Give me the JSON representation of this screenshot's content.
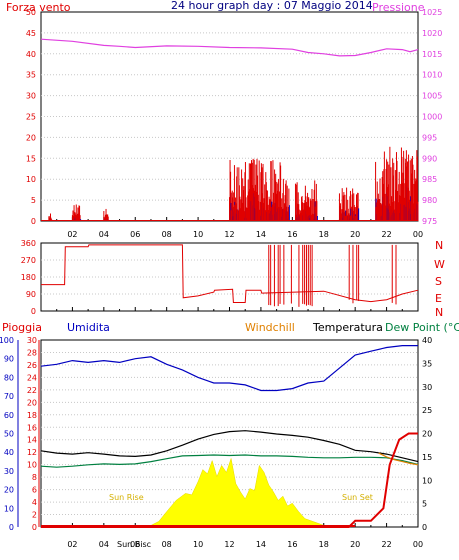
{
  "header": {
    "left_label": "Forza vento",
    "title": "24 hour graph day : 07 Maggio 2014",
    "right_label": "Pressione"
  },
  "labels": {
    "pioggia": "Pioggia",
    "umidita": "Umidita",
    "windchill": "Windchill",
    "temperatura": "Temperatura",
    "dewpoint": "Dew Point (°C",
    "sunrise": "Sun Rise",
    "sunset": "Sun Set",
    "sunbisc": "Sun Bisc"
  },
  "x_ticks": [
    "02",
    "04",
    "06",
    "08",
    "10",
    "12",
    "14",
    "16",
    "18",
    "20",
    "22",
    "00"
  ],
  "dir_labels": [
    "N",
    "W",
    "S",
    "E",
    "N"
  ],
  "colors": {
    "wind": "#e00000",
    "gust": "#0000c0",
    "pressure": "#e040e0",
    "humidity": "#0000c0",
    "temp": "#000000",
    "dew": "#008040",
    "windchill": "#e08000",
    "rain": "#e00000",
    "solar": "#ffff00",
    "grid": "#000000",
    "title": "#000080"
  },
  "chart_data": [
    {
      "type": "line",
      "title": "24 hour graph day : 07 Maggio 2014",
      "ylabel": "Forza vento",
      "y2label": "Pressione",
      "ylim": [
        0,
        50
      ],
      "y2lim": [
        975,
        1025
      ],
      "yticks": [
        0,
        5,
        10,
        15,
        20,
        25,
        30,
        35,
        40,
        45,
        50
      ],
      "y2ticks": [
        975,
        980,
        985,
        990,
        995,
        1000,
        1005,
        1010,
        1015,
        1020,
        1025
      ],
      "series": [
        {
          "name": "Pressione",
          "x": [
            0,
            2,
            4,
            5,
            6,
            8,
            10,
            12,
            14,
            16,
            17,
            18,
            19,
            20,
            21,
            22,
            23,
            23.5,
            24
          ],
          "values": [
            1018.5,
            1018.0,
            1017.0,
            1016.8,
            1016.5,
            1016.9,
            1016.8,
            1016.5,
            1016.4,
            1016.1,
            1015.3,
            1015.0,
            1014.5,
            1014.6,
            1015.3,
            1016.2,
            1016.0,
            1015.5,
            1016.0
          ]
        }
      ],
      "wind_bursts": [
        {
          "from": 0.5,
          "to": 0.7,
          "max": 2
        },
        {
          "from": 2.0,
          "to": 2.5,
          "max": 4
        },
        {
          "from": 4.0,
          "to": 4.3,
          "max": 3
        },
        {
          "from": 12.0,
          "to": 15.8,
          "max": 15
        },
        {
          "from": 16.2,
          "to": 17.6,
          "max": 10
        },
        {
          "from": 19.0,
          "to": 20.2,
          "max": 8
        },
        {
          "from": 21.3,
          "to": 24.0,
          "max": 18
        }
      ]
    },
    {
      "type": "line",
      "ylabel": "",
      "ylim": [
        0,
        360
      ],
      "yticks": [
        0,
        90,
        180,
        270,
        360
      ],
      "series": [
        {
          "name": "",
          "x": [
            0,
            1.5,
            1.55,
            3.0,
            3.05,
            9.0,
            9.05,
            10,
            11.0,
            11.05,
            12.2,
            12.25,
            13.0,
            13.05,
            14.0,
            14.05,
            18.0,
            20.0,
            21.0,
            22.0,
            23.0,
            24.0
          ],
          "values": [
            140,
            140,
            340,
            340,
            350,
            350,
            70,
            80,
            100,
            110,
            115,
            45,
            45,
            110,
            110,
            95,
            105,
            60,
            50,
            60,
            90,
            110
          ]
        }
      ],
      "spike_ranges": [
        {
          "from": 14.5,
          "to": 17.3,
          "low": 20,
          "high": 350
        },
        {
          "from": 19.5,
          "to": 20.3,
          "low": 40,
          "high": 350
        },
        {
          "from": 22.0,
          "to": 22.7,
          "low": 30,
          "high": 350
        }
      ]
    },
    {
      "type": "line",
      "y_left_outer_lim": [
        0,
        100
      ],
      "y_left_outer_ticks": [
        0,
        10,
        20,
        30,
        40,
        50,
        60,
        70,
        80,
        90,
        100
      ],
      "y_left_inner_lim": [
        0,
        30
      ],
      "y_left_inner_ticks": [
        0,
        2,
        4,
        6,
        8,
        10,
        12,
        14,
        16,
        18,
        20,
        22,
        24,
        26,
        28,
        30
      ],
      "y_right_lim": [
        0,
        40
      ],
      "y_right_ticks": [
        0,
        5,
        10,
        15,
        20,
        25,
        30,
        35,
        40
      ],
      "series": [
        {
          "name": "Umidita",
          "axis": "hum",
          "x": [
            0,
            1,
            2,
            3,
            4,
            5,
            6,
            7,
            8,
            9,
            10,
            11,
            12,
            13,
            14,
            15,
            16,
            17,
            18,
            19,
            20,
            21,
            22,
            23,
            24
          ],
          "values": [
            86,
            87,
            89,
            88,
            89,
            88,
            90,
            91,
            87,
            84,
            80,
            77,
            77,
            76,
            73,
            73,
            74,
            77,
            78,
            85,
            92,
            94,
            96,
            97,
            97
          ]
        },
        {
          "name": "Temperatura",
          "axis": "temp",
          "x": [
            0,
            1,
            2,
            3,
            4,
            5,
            6,
            7,
            8,
            9,
            10,
            11,
            12,
            13,
            14,
            15,
            16,
            17,
            18,
            19,
            20,
            21,
            22,
            23,
            24
          ],
          "values": [
            16.3,
            15.8,
            15.6,
            15.9,
            15.6,
            15.2,
            15.1,
            15.4,
            16.3,
            17.5,
            18.8,
            19.8,
            20.4,
            20.6,
            20.3,
            19.9,
            19.6,
            19.2,
            18.5,
            17.7,
            16.4,
            16.1,
            15.6,
            14.8,
            14.0
          ]
        },
        {
          "name": "Dew Point",
          "axis": "temp",
          "x": [
            0,
            1,
            2,
            3,
            4,
            5,
            6,
            7,
            8,
            9,
            10,
            11,
            12,
            13,
            14,
            15,
            16,
            17,
            18,
            19,
            20,
            21,
            22,
            23,
            24
          ],
          "values": [
            13.0,
            12.8,
            13.0,
            13.3,
            13.5,
            13.4,
            13.5,
            14.0,
            14.6,
            15.2,
            15.3,
            15.4,
            15.3,
            15.4,
            15.2,
            15.2,
            15.1,
            14.9,
            14.8,
            14.8,
            14.9,
            14.9,
            14.8,
            14.2,
            13.4
          ]
        },
        {
          "name": "Windchill",
          "axis": "temp",
          "x": [
            21.5,
            22.0,
            22.5,
            23.0,
            23.5,
            24.0
          ],
          "values": [
            15.8,
            15.0,
            14.4,
            14.0,
            13.6,
            13.3
          ]
        },
        {
          "name": "Pioggia",
          "axis": "rain",
          "x": [
            0,
            16,
            19.6,
            20.0,
            21.0,
            21.8,
            22.2,
            22.8,
            23.4,
            24.0
          ],
          "values": [
            0,
            0,
            0,
            1,
            1,
            3,
            10,
            14,
            15,
            15
          ]
        }
      ],
      "solar": {
        "x": [
          6.8,
          7.5,
          8.0,
          8.6,
          9.2,
          9.6,
          10.0,
          10.3,
          10.6,
          10.9,
          11.2,
          11.5,
          11.8,
          12.1,
          12.4,
          12.7,
          13.0,
          13.3,
          13.6,
          13.9,
          14.2,
          14.5,
          14.8,
          15.1,
          15.4,
          15.7,
          16.0,
          16.4,
          16.8,
          17.3,
          17.8,
          18.3
        ],
        "values": [
          0,
          8,
          22,
          38,
          48,
          46,
          65,
          82,
          76,
          95,
          72,
          88,
          78,
          98,
          62,
          50,
          40,
          55,
          52,
          88,
          78,
          60,
          50,
          38,
          44,
          30,
          34,
          22,
          12,
          8,
          4,
          0
        ]
      }
    }
  ]
}
